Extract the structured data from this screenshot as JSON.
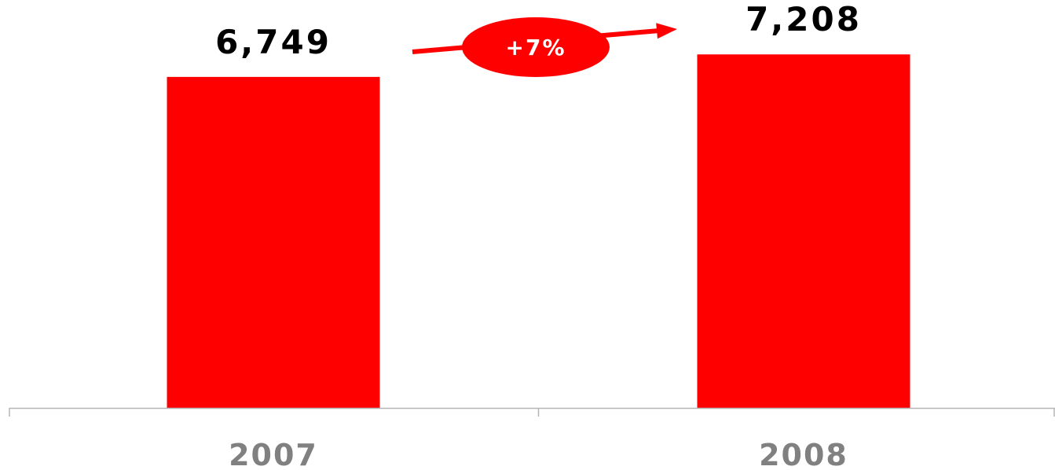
{
  "colors": {
    "bar": "#ff0000",
    "axis": "#b5b5b5",
    "tick_label": "#808080",
    "value_label": "#000000",
    "callout": "#ff0000",
    "callout_text": "#ffffff"
  },
  "growth_callout": {
    "text": "+7%"
  },
  "chart_data": {
    "type": "bar",
    "categories": [
      "2007",
      "2008"
    ],
    "values": [
      6749,
      7208
    ],
    "data_labels": [
      "6,749",
      "7,208"
    ],
    "title": "",
    "xlabel": "",
    "ylabel": "",
    "ylim": [
      0,
      7500
    ],
    "grid": false,
    "legend": "none",
    "y_axis_visible": false
  }
}
